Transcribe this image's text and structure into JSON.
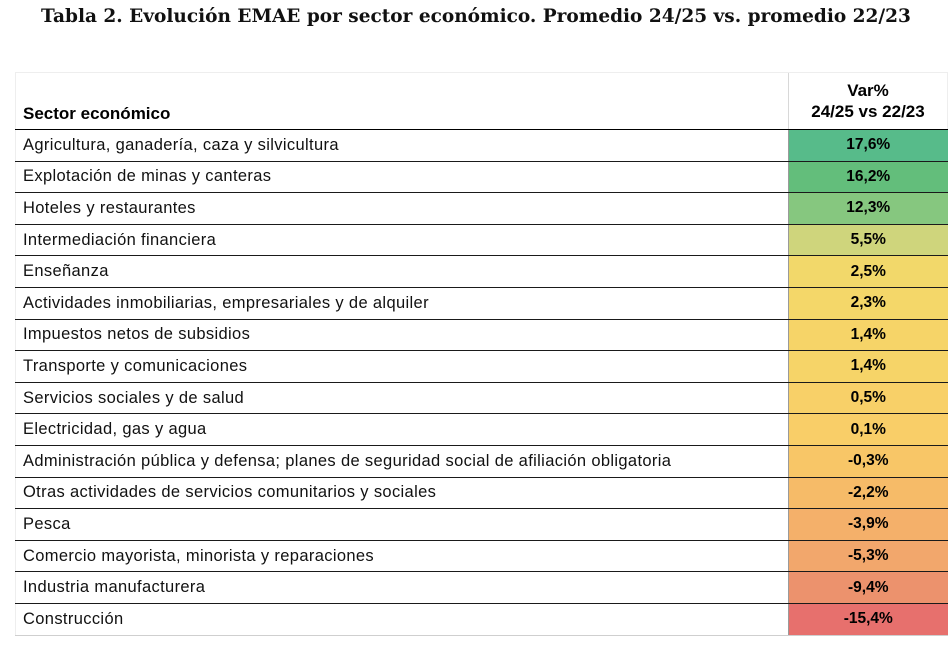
{
  "title": "Tabla 2. Evolución EMAE por sector económico. Promedio 24/25 vs. promedio 22/23",
  "table": {
    "header_sector": "Sector económico",
    "header_var_line1": "Var%",
    "header_var_line2": "24/25 vs 22/23",
    "rows": [
      {
        "sector": "Agricultura, ganadería, caza y silvicultura",
        "value": "17,6%",
        "num": 17.6,
        "color": "#57bb8a"
      },
      {
        "sector": "Explotación de minas y canteras",
        "value": "16,2%",
        "num": 16.2,
        "color": "#63be7b"
      },
      {
        "sector": "Hoteles y restaurantes",
        "value": "12,3%",
        "num": 12.3,
        "color": "#86c77f"
      },
      {
        "sector": "Intermediación financiera",
        "value": "5,5%",
        "num": 5.5,
        "color": "#cfd57c"
      },
      {
        "sector": "Enseñanza",
        "value": "2,5%",
        "num": 2.5,
        "color": "#f2d86a"
      },
      {
        "sector": "Actividades inmobiliarias, empresariales y de alquiler",
        "value": "2,3%",
        "num": 2.3,
        "color": "#f4d769"
      },
      {
        "sector": "Impuestos netos de subsidios",
        "value": "1,4%",
        "num": 1.4,
        "color": "#f6d468"
      },
      {
        "sector": "Transporte y comunicaciones",
        "value": "1,4%",
        "num": 1.4,
        "color": "#f6d468"
      },
      {
        "sector": "Servicios sociales y de salud",
        "value": "0,5%",
        "num": 0.5,
        "color": "#f8d068"
      },
      {
        "sector": "Electricidad, gas y agua",
        "value": "0,1%",
        "num": 0.1,
        "color": "#f9ce68"
      },
      {
        "sector": "Administración pública y defensa; planes de seguridad social de afiliación obligatoria",
        "value": "-0,3%",
        "num": -0.3,
        "color": "#f8c667"
      },
      {
        "sector": "Otras actividades de servicios comunitarios y sociales",
        "value": "-2,2%",
        "num": -2.2,
        "color": "#f6bb68"
      },
      {
        "sector": "Pesca",
        "value": "-3,9%",
        "num": -3.9,
        "color": "#f4b06a"
      },
      {
        "sector": "Comercio mayorista, minorista y reparaciones",
        "value": "-5,3%",
        "num": -5.3,
        "color": "#f2a76c"
      },
      {
        "sector": "Industria manufacturera",
        "value": "-9,4%",
        "num": -9.4,
        "color": "#ec926d"
      },
      {
        "sector": "Construcción",
        "value": "-15,4%",
        "num": -15.4,
        "color": "#e7706d"
      }
    ]
  }
}
